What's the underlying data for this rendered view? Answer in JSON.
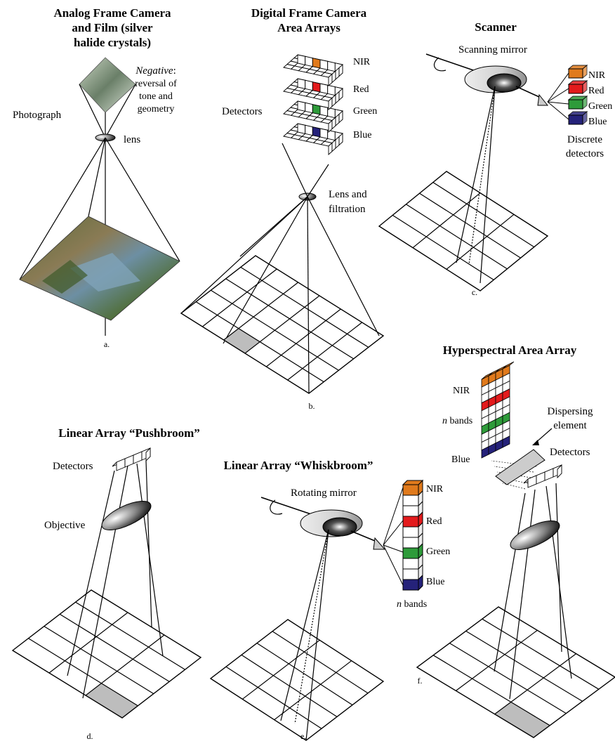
{
  "panels": {
    "a": {
      "title_lines": [
        "Analog Frame Camera",
        "and Film (silver",
        "halide crystals)"
      ],
      "negative_italic": "Negative",
      "negative_rest": ":",
      "negative_lines": [
        "reversal of",
        "tone and",
        "geometry"
      ],
      "photograph": "Photograph",
      "lens": "lens",
      "caption": "a."
    },
    "b": {
      "title_lines": [
        "Digital Frame Camera",
        "Area Arrays"
      ],
      "detectors": "Detectors",
      "bands": [
        "NIR",
        "Red",
        "Green",
        "Blue"
      ],
      "lens_lines": [
        "Lens and",
        "filtration"
      ],
      "caption": "b."
    },
    "c": {
      "title": "Scanner",
      "mirror": "Scanning mirror",
      "bands": [
        "NIR",
        "Red",
        "Green",
        "Blue"
      ],
      "detector_lines": [
        "Discrete",
        "detectors"
      ],
      "caption": "c."
    },
    "d": {
      "title": "Linear Array “Pushbroom”",
      "detectors": "Detectors",
      "objective": "Objective",
      "caption": "d."
    },
    "e": {
      "title": "Linear Array “Whiskbroom”",
      "mirror": "Rotating mirror",
      "bands": [
        "NIR",
        "Red",
        "Green",
        "Blue"
      ],
      "nbands_italic": "n",
      "nbands_rest": " bands",
      "caption": "e."
    },
    "f": {
      "title": "Hyperspectral Area Array",
      "nir": "NIR",
      "nbands_italic": "n",
      "nbands_rest": " bands",
      "blue": "Blue",
      "dispersing_lines": [
        "Dispersing",
        "element"
      ],
      "detectors": "Detectors",
      "caption": "f."
    }
  },
  "colors": {
    "nir": "#e07a1c",
    "red": "#e31a1c",
    "green": "#2e9b3a",
    "blue": "#25227a",
    "pixel": "#bdbdbd"
  }
}
